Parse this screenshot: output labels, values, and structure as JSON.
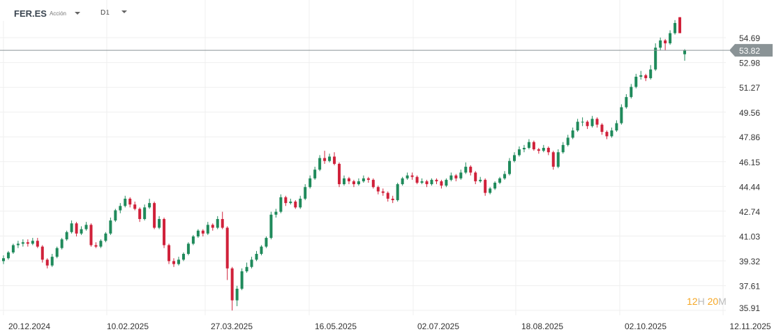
{
  "header": {
    "symbol": "FER.ES",
    "type": "Acción",
    "timeframe": "D1"
  },
  "timer": {
    "hours": "12",
    "h": "H",
    "minutes": "20",
    "m": "M"
  },
  "colors": {
    "up": "#1f8a5b",
    "down": "#d0213a",
    "price_line": "#8a9396",
    "grid": "#efefef"
  },
  "chart_data": {
    "type": "candlestick",
    "current_price": 53.82,
    "y_ticks": [
      "54.69",
      "52.98",
      "51.27",
      "49.56",
      "47.86",
      "46.15",
      "44.44",
      "42.74",
      "41.03",
      "39.32",
      "37.61",
      "35.91"
    ],
    "x_ticks": [
      "20.12.2024",
      "10.02.2025",
      "27.03.2025",
      "16.05.2025",
      "02.07.2025",
      "18.08.2025",
      "02.10.2025",
      "12.11.2025"
    ],
    "ylim": [
      35.91,
      54.69
    ],
    "grid": true,
    "ohlc": [
      [
        39.3,
        39.7,
        39.1,
        39.5
      ],
      [
        39.5,
        40.0,
        39.4,
        39.9
      ],
      [
        39.9,
        40.5,
        39.8,
        40.4
      ],
      [
        40.4,
        40.7,
        40.2,
        40.5
      ],
      [
        40.5,
        40.8,
        40.3,
        40.6
      ],
      [
        40.6,
        40.8,
        40.3,
        40.5
      ],
      [
        40.5,
        40.9,
        40.4,
        40.7
      ],
      [
        40.7,
        40.9,
        40.2,
        40.3
      ],
      [
        40.3,
        40.4,
        39.2,
        39.4
      ],
      [
        39.4,
        39.5,
        38.8,
        39.0
      ],
      [
        39.0,
        39.8,
        38.9,
        39.6
      ],
      [
        39.6,
        40.3,
        39.5,
        40.2
      ],
      [
        40.2,
        40.9,
        40.1,
        40.8
      ],
      [
        40.8,
        41.4,
        40.7,
        41.3
      ],
      [
        41.3,
        42.1,
        41.2,
        41.9
      ],
      [
        41.9,
        42.0,
        41.0,
        41.2
      ],
      [
        41.2,
        41.7,
        41.1,
        41.5
      ],
      [
        41.5,
        42.0,
        41.4,
        41.8
      ],
      [
        41.8,
        41.9,
        40.3,
        40.4
      ],
      [
        40.4,
        40.6,
        40.2,
        40.3
      ],
      [
        40.3,
        40.8,
        40.2,
        40.7
      ],
      [
        40.7,
        41.3,
        40.6,
        41.2
      ],
      [
        41.2,
        42.3,
        41.1,
        42.1
      ],
      [
        42.1,
        42.9,
        42.0,
        42.8
      ],
      [
        42.8,
        43.3,
        42.6,
        43.1
      ],
      [
        43.1,
        43.8,
        43.0,
        43.6
      ],
      [
        43.6,
        43.7,
        43.0,
        43.2
      ],
      [
        43.2,
        43.4,
        42.8,
        42.9
      ],
      [
        42.9,
        43.0,
        42.0,
        42.2
      ],
      [
        42.2,
        43.2,
        42.1,
        43.0
      ],
      [
        43.0,
        43.6,
        42.9,
        43.3
      ],
      [
        43.3,
        43.4,
        41.5,
        41.6
      ],
      [
        41.6,
        42.4,
        41.5,
        42.2
      ],
      [
        42.2,
        42.3,
        40.2,
        40.4
      ],
      [
        40.4,
        40.5,
        39.1,
        39.3
      ],
      [
        39.3,
        39.5,
        38.9,
        39.1
      ],
      [
        39.1,
        39.6,
        39.0,
        39.4
      ],
      [
        39.4,
        39.9,
        39.3,
        39.8
      ],
      [
        39.8,
        40.6,
        39.7,
        40.5
      ],
      [
        40.5,
        41.1,
        40.4,
        41.0
      ],
      [
        41.0,
        41.5,
        40.9,
        41.4
      ],
      [
        41.4,
        41.5,
        41.0,
        41.2
      ],
      [
        41.2,
        42.0,
        41.1,
        41.8
      ],
      [
        41.8,
        41.9,
        41.4,
        41.6
      ],
      [
        41.6,
        42.4,
        41.5,
        42.2
      ],
      [
        42.2,
        42.7,
        41.5,
        41.6
      ],
      [
        41.6,
        41.7,
        38.0,
        38.8
      ],
      [
        38.8,
        38.9,
        35.9,
        36.6
      ],
      [
        36.6,
        37.6,
        36.2,
        37.4
      ],
      [
        37.4,
        38.8,
        37.3,
        38.6
      ],
      [
        38.6,
        39.2,
        38.5,
        38.9
      ],
      [
        38.9,
        39.6,
        38.8,
        39.4
      ],
      [
        39.4,
        40.0,
        39.3,
        39.8
      ],
      [
        39.8,
        40.4,
        39.7,
        40.3
      ],
      [
        40.3,
        41.0,
        40.2,
        40.9
      ],
      [
        40.9,
        42.7,
        40.8,
        42.5
      ],
      [
        42.5,
        42.9,
        42.3,
        42.7
      ],
      [
        42.7,
        43.9,
        42.6,
        43.7
      ],
      [
        43.7,
        43.8,
        43.1,
        43.3
      ],
      [
        43.3,
        43.6,
        43.2,
        43.4
      ],
      [
        43.4,
        43.5,
        42.9,
        43.0
      ],
      [
        43.0,
        43.8,
        42.9,
        43.6
      ],
      [
        43.6,
        44.6,
        43.5,
        44.4
      ],
      [
        44.4,
        45.2,
        44.3,
        45.0
      ],
      [
        45.0,
        45.8,
        44.9,
        45.6
      ],
      [
        45.6,
        46.6,
        45.5,
        46.4
      ],
      [
        46.4,
        46.9,
        46.0,
        46.2
      ],
      [
        46.2,
        46.7,
        46.1,
        46.5
      ],
      [
        46.5,
        46.8,
        45.9,
        46.0
      ],
      [
        46.0,
        46.1,
        44.4,
        44.6
      ],
      [
        44.6,
        45.2,
        44.5,
        45.0
      ],
      [
        45.0,
        45.1,
        44.6,
        44.8
      ],
      [
        44.8,
        44.9,
        44.4,
        44.6
      ],
      [
        44.6,
        45.0,
        44.5,
        44.8
      ],
      [
        44.8,
        45.2,
        44.7,
        45.0
      ],
      [
        45.0,
        45.1,
        44.7,
        44.9
      ],
      [
        44.9,
        45.0,
        44.3,
        44.4
      ],
      [
        44.4,
        44.5,
        43.9,
        44.1
      ],
      [
        44.1,
        44.3,
        43.8,
        44.0
      ],
      [
        44.0,
        44.1,
        43.4,
        43.6
      ],
      [
        43.6,
        43.8,
        43.3,
        43.5
      ],
      [
        43.5,
        44.7,
        43.4,
        44.6
      ],
      [
        44.6,
        45.1,
        44.5,
        45.0
      ],
      [
        45.0,
        45.4,
        44.9,
        45.2
      ],
      [
        45.2,
        45.4,
        44.9,
        45.1
      ],
      [
        45.1,
        45.2,
        44.6,
        44.7
      ],
      [
        44.7,
        45.0,
        44.6,
        44.8
      ],
      [
        44.8,
        44.9,
        44.4,
        44.6
      ],
      [
        44.6,
        45.0,
        44.5,
        44.9
      ],
      [
        44.9,
        45.0,
        44.6,
        44.8
      ],
      [
        44.8,
        44.9,
        44.3,
        44.5
      ],
      [
        44.5,
        45.0,
        44.4,
        44.9
      ],
      [
        44.9,
        45.4,
        44.8,
        45.2
      ],
      [
        45.2,
        45.3,
        44.8,
        45.0
      ],
      [
        45.0,
        45.6,
        44.9,
        45.4
      ],
      [
        45.4,
        46.1,
        45.3,
        45.8
      ],
      [
        45.8,
        45.9,
        45.2,
        45.4
      ],
      [
        45.4,
        45.5,
        44.6,
        44.8
      ],
      [
        44.8,
        45.1,
        44.7,
        44.9
      ],
      [
        44.9,
        45.0,
        43.8,
        44.0
      ],
      [
        44.0,
        44.4,
        43.9,
        44.3
      ],
      [
        44.3,
        44.8,
        44.2,
        44.7
      ],
      [
        44.7,
        45.1,
        44.6,
        45.0
      ],
      [
        45.0,
        45.5,
        44.9,
        45.3
      ],
      [
        45.3,
        46.4,
        45.2,
        46.2
      ],
      [
        46.2,
        46.8,
        46.1,
        46.6
      ],
      [
        46.6,
        47.2,
        46.5,
        47.0
      ],
      [
        47.0,
        47.3,
        46.8,
        47.1
      ],
      [
        47.1,
        47.7,
        47.0,
        47.5
      ],
      [
        47.5,
        47.6,
        46.9,
        47.0
      ],
      [
        47.0,
        47.1,
        46.7,
        46.9
      ],
      [
        46.9,
        47.3,
        46.8,
        47.1
      ],
      [
        47.1,
        47.2,
        46.6,
        46.8
      ],
      [
        46.8,
        46.9,
        45.6,
        45.8
      ],
      [
        45.8,
        47.0,
        45.7,
        46.8
      ],
      [
        46.8,
        47.5,
        46.7,
        47.3
      ],
      [
        47.3,
        48.0,
        47.2,
        47.8
      ],
      [
        47.8,
        48.5,
        47.7,
        48.3
      ],
      [
        48.3,
        49.1,
        48.2,
        48.9
      ],
      [
        48.9,
        49.2,
        48.6,
        48.9
      ],
      [
        48.9,
        49.0,
        48.4,
        48.6
      ],
      [
        48.6,
        49.3,
        48.5,
        49.1
      ],
      [
        49.1,
        49.2,
        48.5,
        48.7
      ],
      [
        48.7,
        48.8,
        48.0,
        48.2
      ],
      [
        48.2,
        48.3,
        47.7,
        47.9
      ],
      [
        47.9,
        48.5,
        47.8,
        48.3
      ],
      [
        48.3,
        49.0,
        48.2,
        48.8
      ],
      [
        48.8,
        50.1,
        48.7,
        49.9
      ],
      [
        49.9,
        50.8,
        49.8,
        50.6
      ],
      [
        50.6,
        51.5,
        50.5,
        51.3
      ],
      [
        51.3,
        52.2,
        51.2,
        52.0
      ],
      [
        52.0,
        52.4,
        51.8,
        52.1
      ],
      [
        52.1,
        52.2,
        51.7,
        51.9
      ],
      [
        51.9,
        52.8,
        51.8,
        52.5
      ],
      [
        52.5,
        54.3,
        52.4,
        54.0
      ],
      [
        54.0,
        54.7,
        53.8,
        54.5
      ],
      [
        54.5,
        54.6,
        53.8,
        54.3
      ],
      [
        54.3,
        55.2,
        54.2,
        55.0
      ],
      [
        55.0,
        55.9,
        54.9,
        55.7
      ],
      [
        56.1,
        56.1,
        55.0,
        55.0
      ],
      [
        53.55,
        53.9,
        53.1,
        53.82
      ]
    ]
  }
}
